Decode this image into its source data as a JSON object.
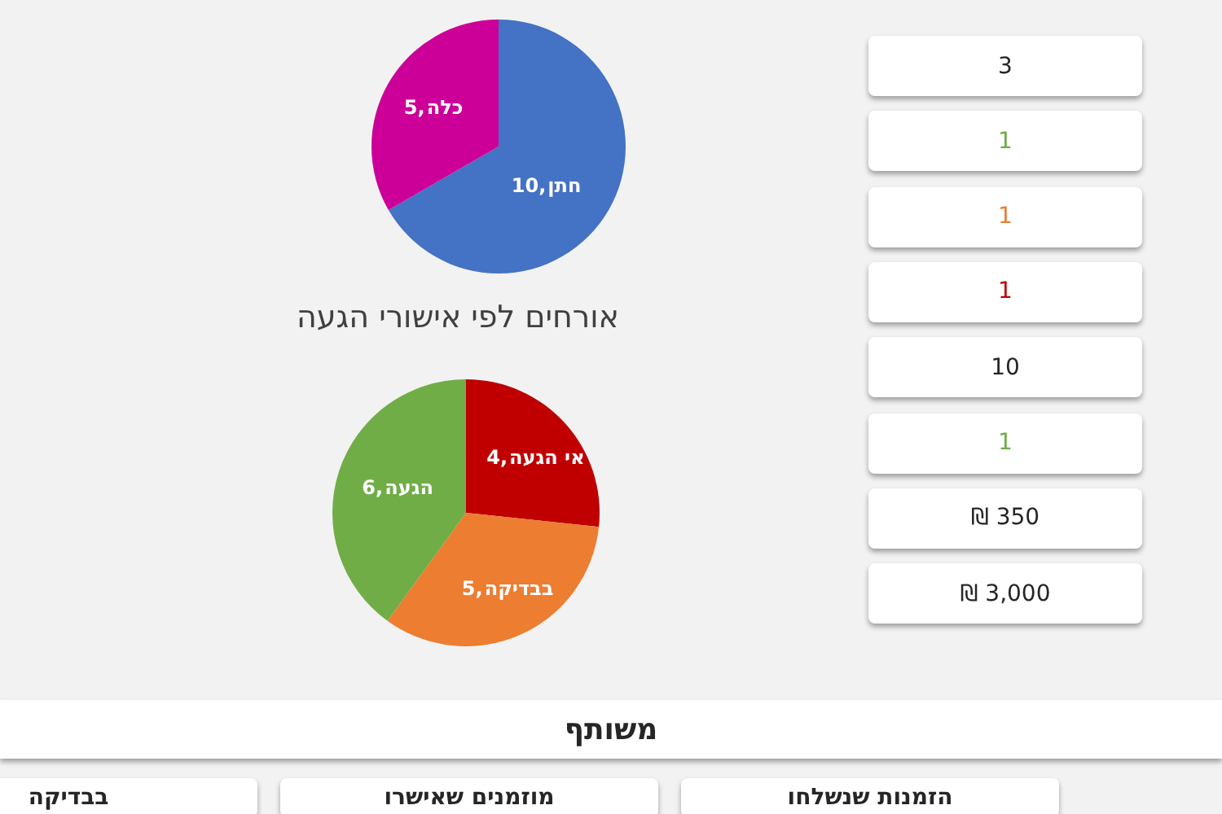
{
  "chart_data": [
    {
      "type": "pie",
      "categories": [
        "חתן",
        "כלה"
      ],
      "values": [
        10,
        5
      ],
      "colors": [
        "#4472c4",
        "#cc0099"
      ],
      "value_labels": [
        "10,",
        "5,"
      ]
    },
    {
      "type": "pie",
      "title": "אורחים לפי אישורי הגעה",
      "categories": [
        "אי הגעה",
        "בבדיקה",
        "הגעה"
      ],
      "values": [
        4,
        5,
        6
      ],
      "colors": [
        "#c00000",
        "#ed7d31",
        "#70ad47"
      ],
      "value_labels": [
        "4,",
        "5,",
        "6,"
      ]
    },
    {
      "type": "other",
      "annotations": [
        "3",
        "1",
        "1",
        "1",
        "10",
        "1",
        "350 ₪",
        "3,000 ₪"
      ],
      "colors": [
        "#262626",
        "#70ad47",
        "#ed7d31",
        "#c00000",
        "#262626",
        "#70ad47",
        "#262626",
        "#262626"
      ]
    },
    {
      "type": "other",
      "title": "משותף",
      "annotations": [
        "הזמנות שנשלחו",
        "מוזמנים שאישרו",
        "בבדיקה"
      ]
    }
  ]
}
